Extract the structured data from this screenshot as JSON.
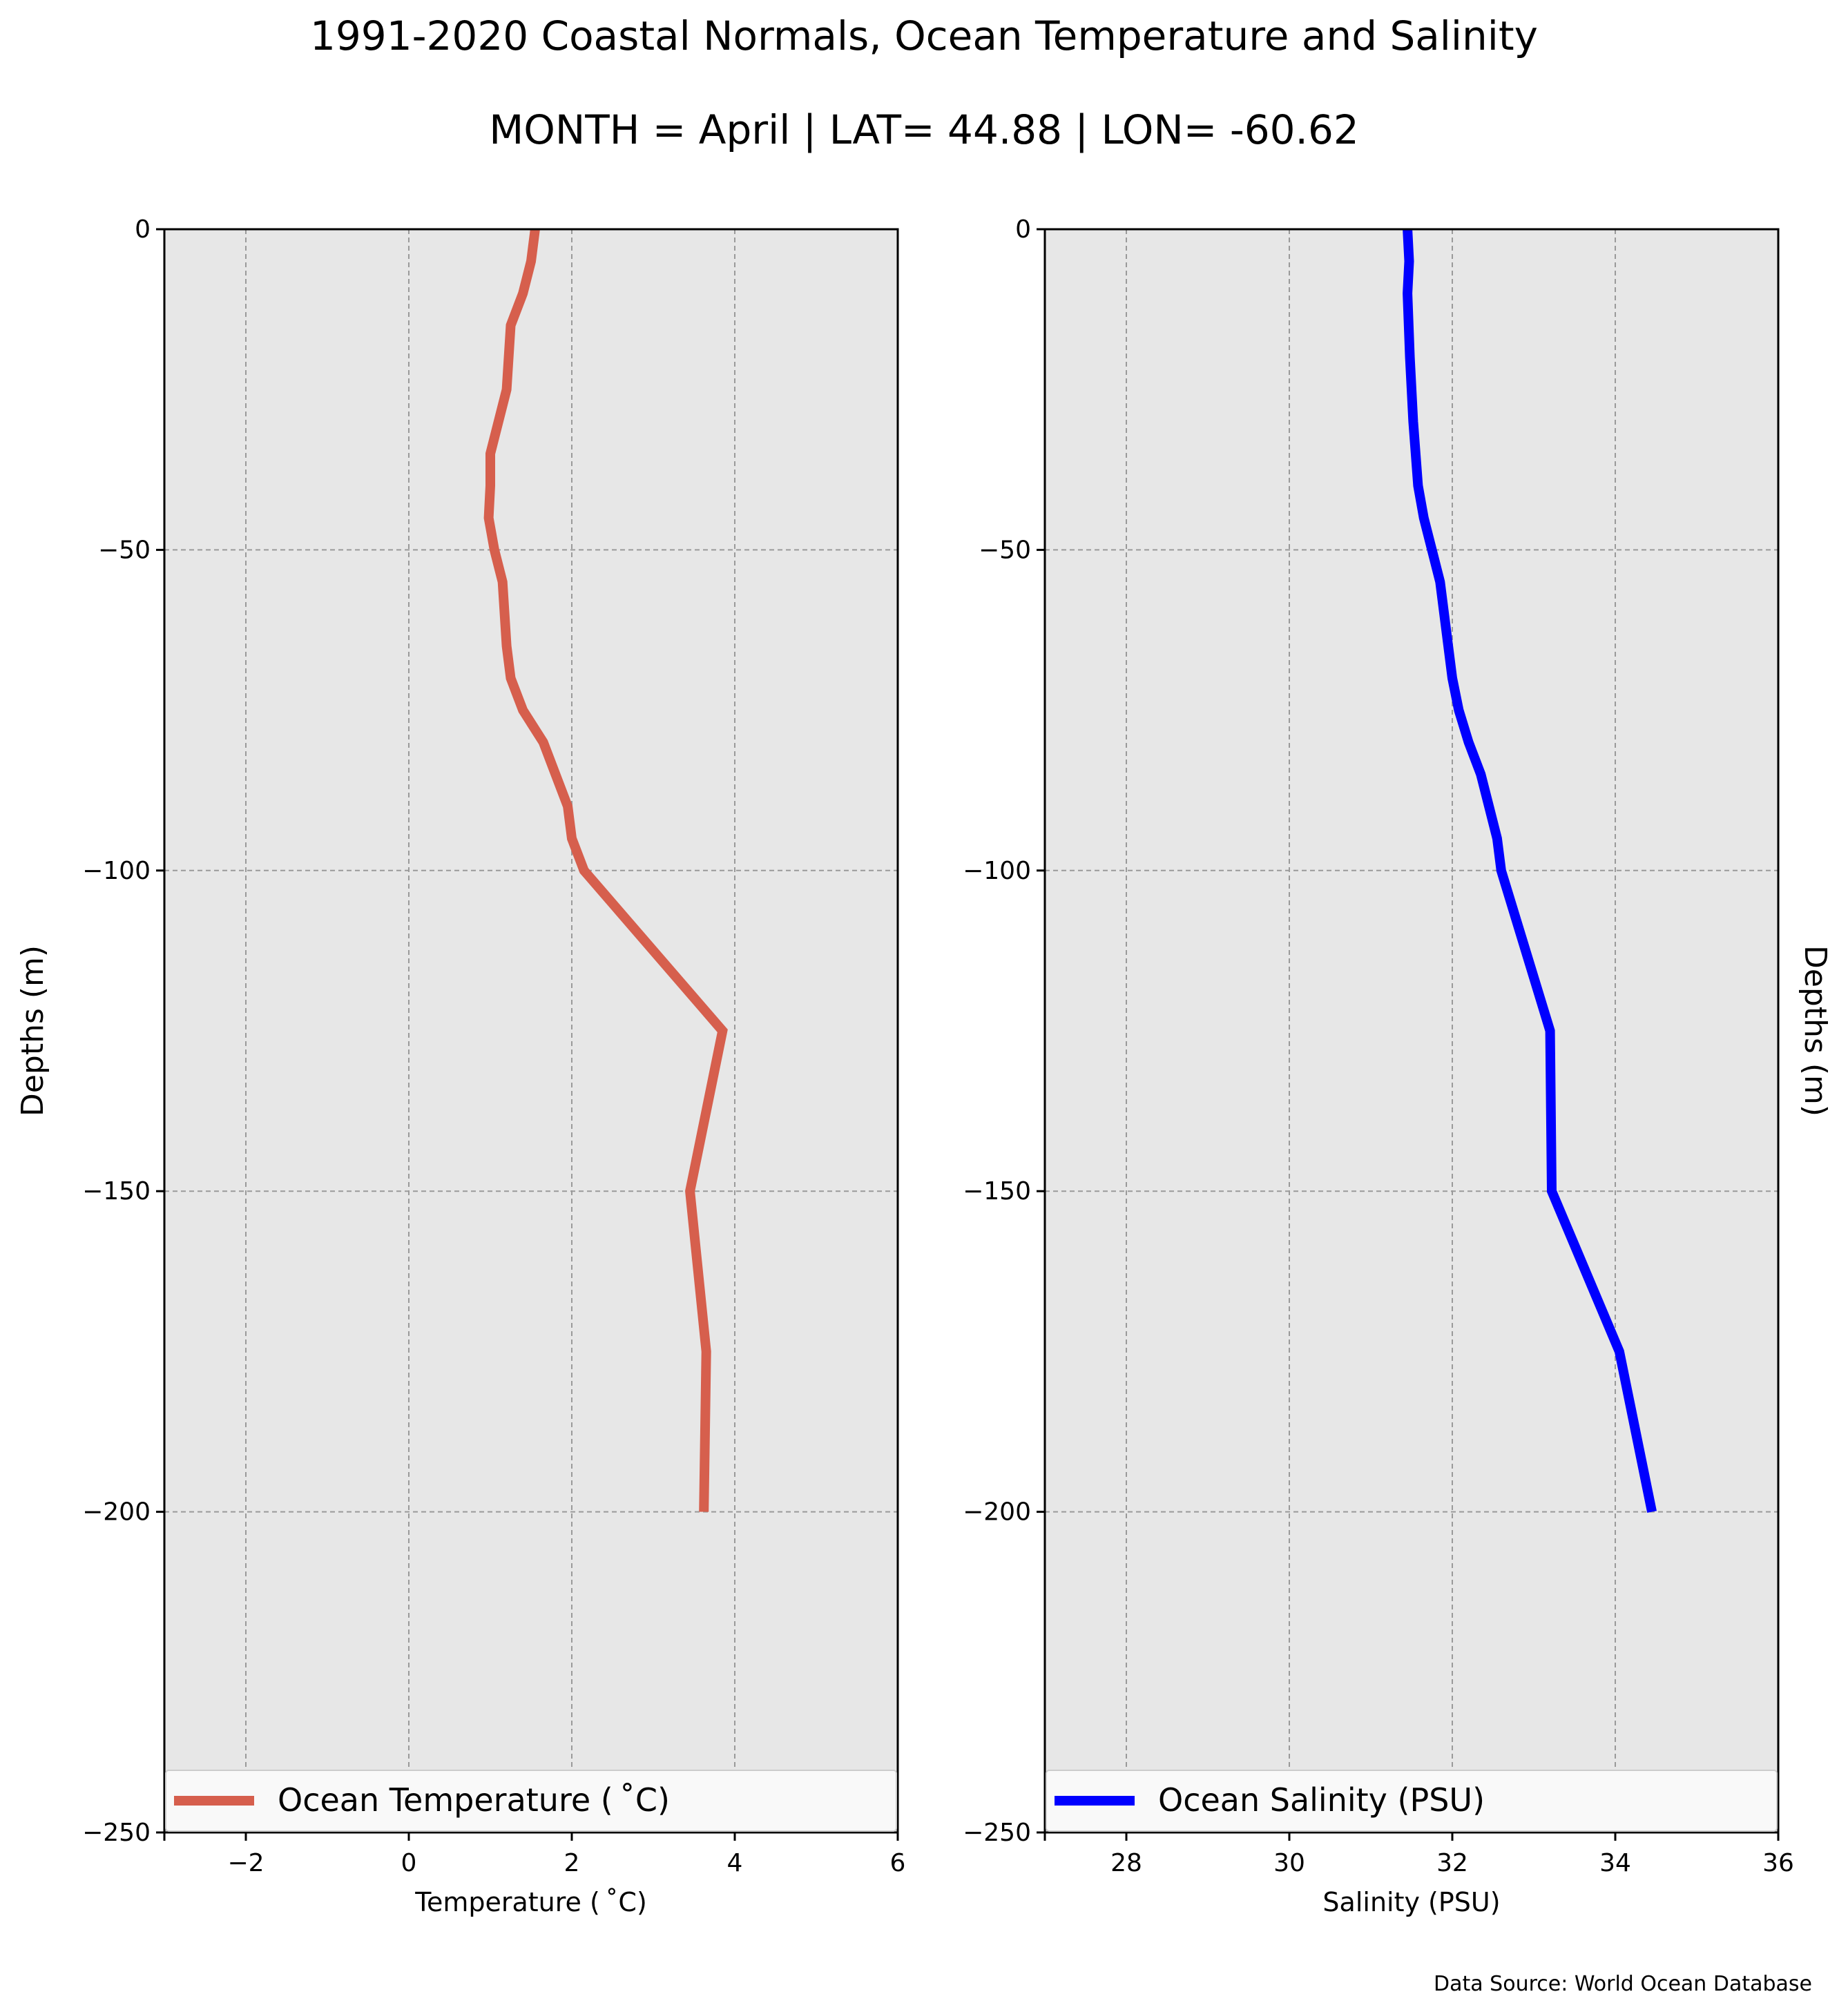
{
  "figure": {
    "title": "1991-2020 Coastal Normals, Ocean Temperature and Salinity",
    "subtitle": "MONTH = April | LAT= 44.88 | LON= -60.62",
    "source": "Data Source: World Ocean Database"
  },
  "chart_data": [
    {
      "type": "line",
      "xlabel": "Temperature ($^\\circ$C)",
      "xlabel_display": "Temperature ( ˚C)",
      "ylabel": "Depths (m)",
      "xlim": [
        -3,
        6
      ],
      "ylim": [
        -250,
        0
      ],
      "xticks": [
        -2,
        0,
        2,
        4,
        6
      ],
      "yticks": [
        0,
        -50,
        -100,
        -150,
        -200,
        -250
      ],
      "grid": true,
      "legend_position": "lower center",
      "series": [
        {
          "name": "Ocean Temperature ( ˚C)",
          "color": "#d65f4d",
          "x": [
            1.55,
            1.5,
            1.4,
            1.25,
            1.2,
            1.0,
            1.0,
            0.98,
            1.05,
            1.15,
            1.2,
            1.25,
            1.4,
            1.65,
            1.8,
            1.95,
            2.0,
            2.15,
            3.85,
            3.45,
            3.65,
            3.62
          ],
          "y": [
            0,
            -5,
            -10,
            -15,
            -25,
            -35,
            -40,
            -45,
            -50,
            -55,
            -65,
            -70,
            -75,
            -80,
            -85,
            -90,
            -95,
            -100,
            -125,
            -150,
            -175,
            -200
          ]
        }
      ]
    },
    {
      "type": "line",
      "xlabel": "Salinity (PSU)",
      "ylabel": "Depths (m)",
      "xlim": [
        27,
        36
      ],
      "ylim": [
        -250,
        0
      ],
      "xticks": [
        28,
        30,
        32,
        34,
        36
      ],
      "yticks": [
        0,
        -50,
        -100,
        -150,
        -200,
        -250
      ],
      "grid": true,
      "legend_position": "lower center",
      "series": [
        {
          "name": "Ocean Salinity (PSU)",
          "color": "#0000ff",
          "x": [
            31.45,
            31.47,
            31.45,
            31.48,
            31.52,
            31.58,
            31.65,
            31.75,
            31.85,
            31.9,
            31.95,
            32.0,
            32.08,
            32.2,
            32.35,
            32.45,
            32.55,
            32.6,
            33.2,
            33.22,
            34.05,
            34.45
          ],
          "y": [
            0,
            -5,
            -10,
            -20,
            -30,
            -40,
            -45,
            -50,
            -55,
            -60,
            -65,
            -70,
            -75,
            -80,
            -85,
            -90,
            -95,
            -100,
            -125,
            -150,
            -175,
            -200
          ]
        }
      ]
    }
  ]
}
